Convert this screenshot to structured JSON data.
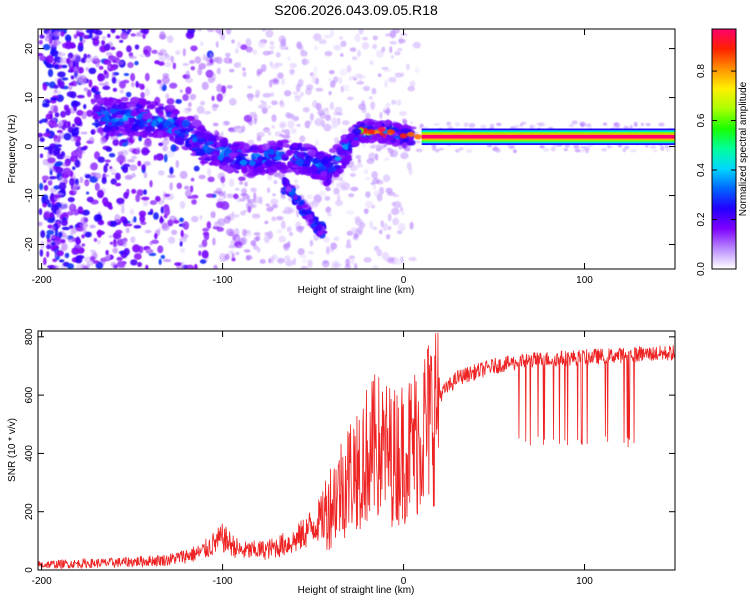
{
  "title": "S206.2026.043.09.05.R18",
  "chart_data": [
    {
      "type": "heatmap",
      "name": "spectrogram",
      "xlabel": "Height of straight line (km)",
      "ylabel": "Frequency (Hz)",
      "xlim": [
        -202,
        150
      ],
      "ylim": [
        -25,
        24
      ],
      "xticks": [
        -200,
        -100,
        0,
        100
      ],
      "yticks": [
        -20,
        -10,
        0,
        10,
        20
      ],
      "colorbar": {
        "label": "Normalized spectral amplitude",
        "range": [
          0.0,
          0.97
        ],
        "ticks": [
          0.0,
          0.2,
          0.4,
          0.6,
          0.8
        ],
        "colormap": [
          "#ffffff",
          "#b98aff",
          "#7f00ff",
          "#2300ff",
          "#0066ff",
          "#00d8ff",
          "#00ff9c",
          "#1aff00",
          "#aaff00",
          "#fff000",
          "#ff9000",
          "#ff2000",
          "#ff0070"
        ]
      },
      "ridge": [
        [
          -160,
          6
        ],
        [
          -145,
          6
        ],
        [
          -130,
          5
        ],
        [
          -120,
          3
        ],
        [
          -110,
          0
        ],
        [
          -95,
          -2
        ],
        [
          -85,
          -3
        ],
        [
          -70,
          -2
        ],
        [
          -60,
          -2
        ],
        [
          -50,
          -3
        ],
        [
          -42,
          -5
        ],
        [
          -35,
          -2
        ],
        [
          -25,
          3
        ],
        [
          -15,
          3
        ],
        [
          -8,
          3
        ],
        [
          0,
          2
        ],
        [
          10,
          2
        ],
        [
          20,
          2
        ],
        [
          50,
          2
        ],
        [
          100,
          2
        ],
        [
          150,
          2
        ]
      ],
      "branch": [
        [
          -65,
          -8
        ],
        [
          -55,
          -13
        ],
        [
          -50,
          -15
        ],
        [
          -46,
          -17
        ]
      ],
      "band": {
        "x_start": 10,
        "x_end": 150,
        "center": 2,
        "half_width": 1.2,
        "peak": 0.97
      }
    },
    {
      "type": "line",
      "name": "snr",
      "xlabel": "Height of straight line (km)",
      "ylabel": "SNR (10 * v/v)",
      "xlim": [
        -202,
        150
      ],
      "ylim": [
        0,
        820
      ],
      "xticks": [
        -200,
        -100,
        0,
        100
      ],
      "yticks": [
        0,
        200,
        400,
        600,
        800
      ],
      "color": "#ee2222",
      "x": [
        -202,
        -160,
        -130,
        -112,
        -100,
        -90,
        -75,
        -60,
        -45,
        -35,
        -25,
        -15,
        -5,
        5,
        15,
        20,
        30,
        50,
        70,
        100,
        130,
        150
      ],
      "y": [
        18,
        25,
        35,
        60,
        110,
        65,
        70,
        100,
        180,
        280,
        370,
        420,
        390,
        430,
        520,
        600,
        660,
        700,
        720,
        730,
        740,
        745
      ],
      "notable_dips_near": [
        [
          62,
          128
        ],
        [
          425,
          440
        ]
      ]
    }
  ]
}
